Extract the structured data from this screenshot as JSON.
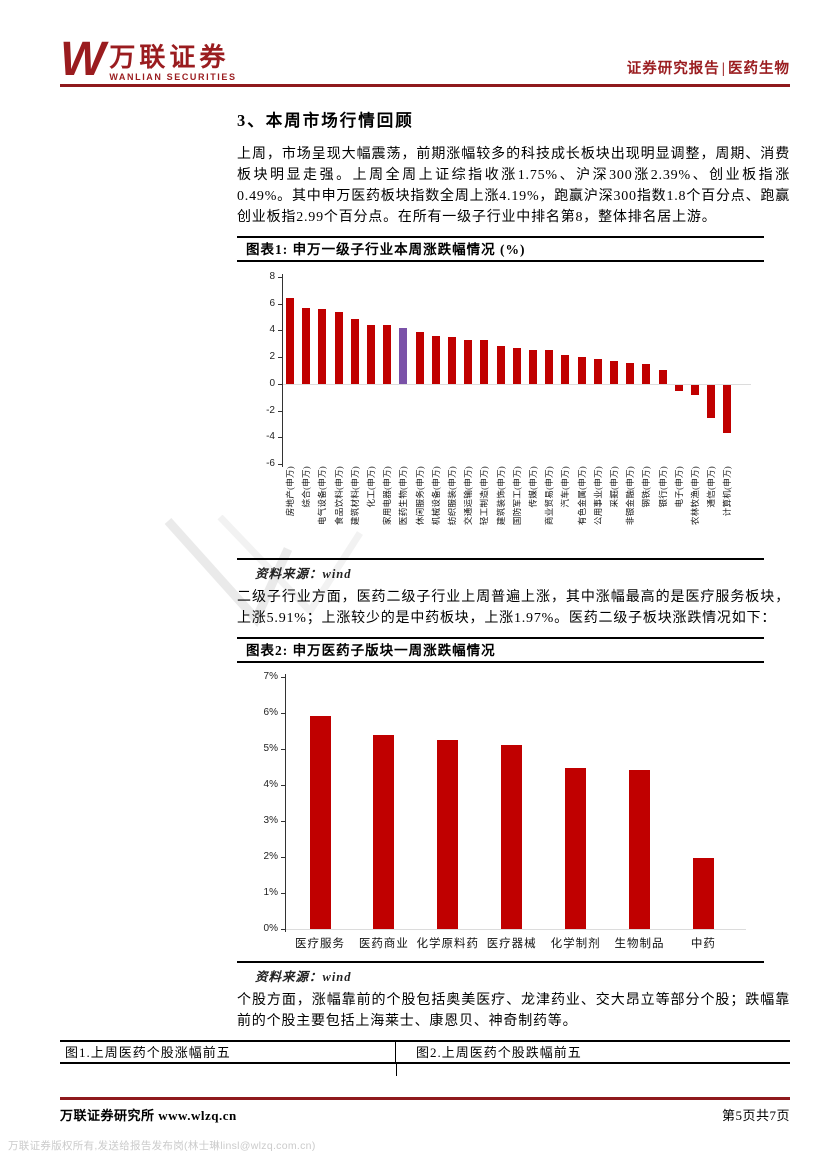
{
  "header": {
    "logo_w": "W",
    "logo_cn": "万联证券",
    "logo_en": "WANLIAN SECURITIES",
    "report_type": "证券研究报告",
    "divider": "|",
    "sector": "医药生物",
    "brand_color": "#9a1c1f"
  },
  "section": {
    "title": "3、本周市场行情回顾",
    "para1": "上周，市场呈现大幅震荡，前期涨幅较多的科技成长板块出现明显调整，周期、消费板块明显走强。上周全周上证综指收涨1.75%、沪深300涨2.39%、创业板指涨0.49%。其中申万医药板块指数全周上涨4.19%，跑赢沪深300指数1.8个百分点、跑赢创业板指2.99个百分点。在所有一级子行业中排名第8，整体排名居上游。",
    "para2": "二级子行业方面，医药二级子行业上周普遍上涨，其中涨幅最高的是医疗服务板块，上涨5.91%；上涨较少的是中药板块，上涨1.97%。医药二级子板块涨跌情况如下：",
    "para3": "个股方面，涨幅靠前的个股包括奥美医疗、龙津药业、交大昂立等部分个股；跌幅靠前的个股主要包括上海莱士、康恩贝、神奇制药等。"
  },
  "figures": {
    "fig1_title": "图表1: 申万一级子行业本周涨跌幅情况 (%)",
    "fig1_source": "资料来源：wind",
    "fig2_title": "图表2: 申万医药子版块一周涨跌幅情况",
    "fig2_source": "资料来源：wind"
  },
  "chart_data": [
    {
      "type": "bar",
      "title": "申万一级子行业本周涨跌幅情况 (%)",
      "categories": [
        "房地产(申万)",
        "综合(申万)",
        "电气设备(申万)",
        "食品饮料(申万)",
        "建筑材料(申万)",
        "化工(申万)",
        "家用电器(申万)",
        "医药生物(申万)",
        "休闲服务(申万)",
        "机械设备(申万)",
        "纺织服装(申万)",
        "交通运输(申万)",
        "轻工制造(申万)",
        "建筑装饰(申万)",
        "国防军工(申万)",
        "传媒(申万)",
        "商业贸易(申万)",
        "汽车(申万)",
        "有色金属(申万)",
        "公用事业(申万)",
        "采掘(申万)",
        "非银金融(申万)",
        "钢铁(申万)",
        "银行(申万)",
        "电子(申万)",
        "农林牧渔(申万)",
        "通信(申万)",
        "计算机(申万)"
      ],
      "values": [
        6.4,
        5.7,
        5.6,
        5.35,
        4.85,
        4.4,
        4.4,
        4.19,
        3.85,
        3.6,
        3.5,
        3.3,
        3.3,
        2.8,
        2.7,
        2.55,
        2.55,
        2.15,
        2.0,
        1.85,
        1.7,
        1.55,
        1.5,
        1.0,
        -0.5,
        -0.75,
        -2.45,
        -3.6
      ],
      "xlabel": "",
      "ylabel": "",
      "ylim": [
        -6,
        8
      ],
      "ytick_labels": [
        "8",
        "6",
        "4",
        "2",
        "0",
        "-2",
        "-4",
        "-6"
      ],
      "grid": false,
      "legend": "none",
      "bar_color": "#c00000",
      "highlight_index": 7,
      "highlight_color": "#7a52a8"
    },
    {
      "type": "bar",
      "title": "申万医药子版块一周涨跌幅情况",
      "categories": [
        "医疗服务",
        "医药商业",
        "化学原料药",
        "医疗器械",
        "化学制剂",
        "生物制品",
        "中药"
      ],
      "values": [
        5.91,
        5.38,
        5.24,
        5.1,
        4.46,
        4.42,
        1.97
      ],
      "xlabel": "",
      "ylabel": "",
      "ylim": [
        0,
        7
      ],
      "ytick_labels": [
        "7%",
        "6%",
        "5%",
        "4%",
        "3%",
        "2%",
        "1%",
        "0%"
      ],
      "grid": false,
      "legend": "none",
      "bar_color": "#c00000",
      "highlight_index": -1,
      "highlight_color": "#c00000"
    }
  ],
  "bottom_table": {
    "left_title": "图1.上周医药个股涨幅前五",
    "right_title": "图2.上周医药个股跌幅前五"
  },
  "footer": {
    "org": "万联证券研究所 www.wlzq.cn",
    "page": "第5页共7页",
    "watermark": "万联证券版权所有,发送给报告发布岗(林士琳linsl@wlzq.com.cn)"
  }
}
